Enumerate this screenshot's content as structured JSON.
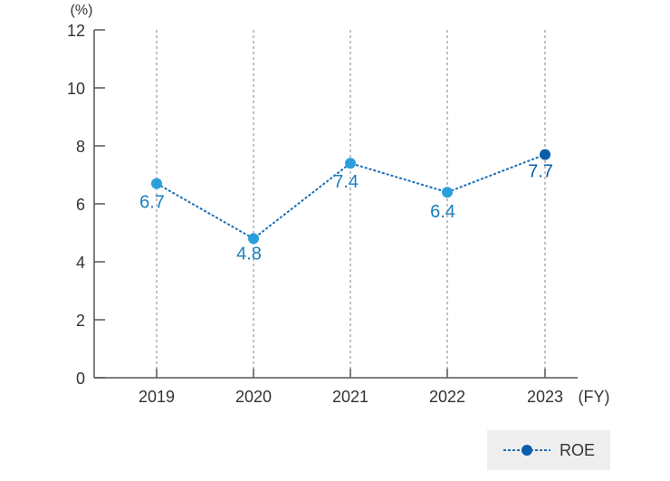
{
  "chart_data": {
    "type": "line",
    "categories": [
      "2019",
      "2020",
      "2021",
      "2022",
      "2023"
    ],
    "series": [
      {
        "name": "ROE",
        "values": [
          6.7,
          4.8,
          7.4,
          6.4,
          7.7
        ]
      }
    ],
    "data_labels": [
      "6.7",
      "4.8",
      "7.4",
      "6.4",
      "7.7"
    ],
    "y_ticks": [
      "0",
      "2",
      "4",
      "6",
      "8",
      "10",
      "12"
    ],
    "ylim": [
      0,
      12
    ],
    "y_unit": "(%)",
    "x_unit": "(FY)",
    "grid": "vertical dotted lines at each category",
    "legend_position": "bottom-right",
    "colors": {
      "line": "#1a6fb8",
      "point": "#2b9fdc",
      "point_last": "#0b5cad",
      "label": "#1a7fc0",
      "label_last": "#0b5cad",
      "axis": "#555555",
      "grid": "#999999",
      "legend_bg": "#eeeeee"
    }
  }
}
